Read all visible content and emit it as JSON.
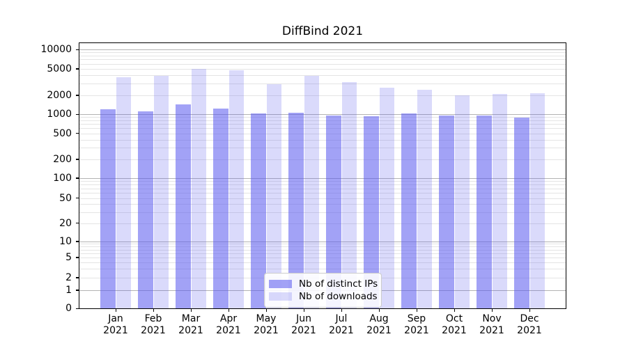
{
  "chart_data": {
    "type": "bar",
    "title": "DiffBind 2021",
    "months": [
      "Jan",
      "Feb",
      "Mar",
      "Apr",
      "May",
      "Jun",
      "Jul",
      "Aug",
      "Sep",
      "Oct",
      "Nov",
      "Dec"
    ],
    "year_label": "2021",
    "series": [
      {
        "name": "Nb of distinct IPs",
        "color": "rgba(85,85,238,0.55)",
        "color_hex_on_white": "#a3a3f3",
        "values": [
          1210,
          1100,
          1440,
          1230,
          1030,
          1060,
          960,
          920,
          1030,
          950,
          940,
          890
        ]
      },
      {
        "name": "Nb of downloads",
        "color": "rgba(85,85,238,0.22)",
        "color_hex_on_white": "#d9d9f9",
        "values": [
          3700,
          3900,
          5000,
          4800,
          2950,
          3950,
          3120,
          2590,
          2390,
          2000,
          2070,
          2120
        ]
      }
    ],
    "yticks": [
      0,
      1,
      2,
      5,
      10,
      20,
      50,
      100,
      200,
      500,
      1000,
      2000,
      5000,
      10000
    ],
    "yscale": "log-with-zero",
    "ylim": [
      0,
      13000
    ],
    "grid": "major-and-minor, horizontal only",
    "legend_position": "lower center"
  }
}
